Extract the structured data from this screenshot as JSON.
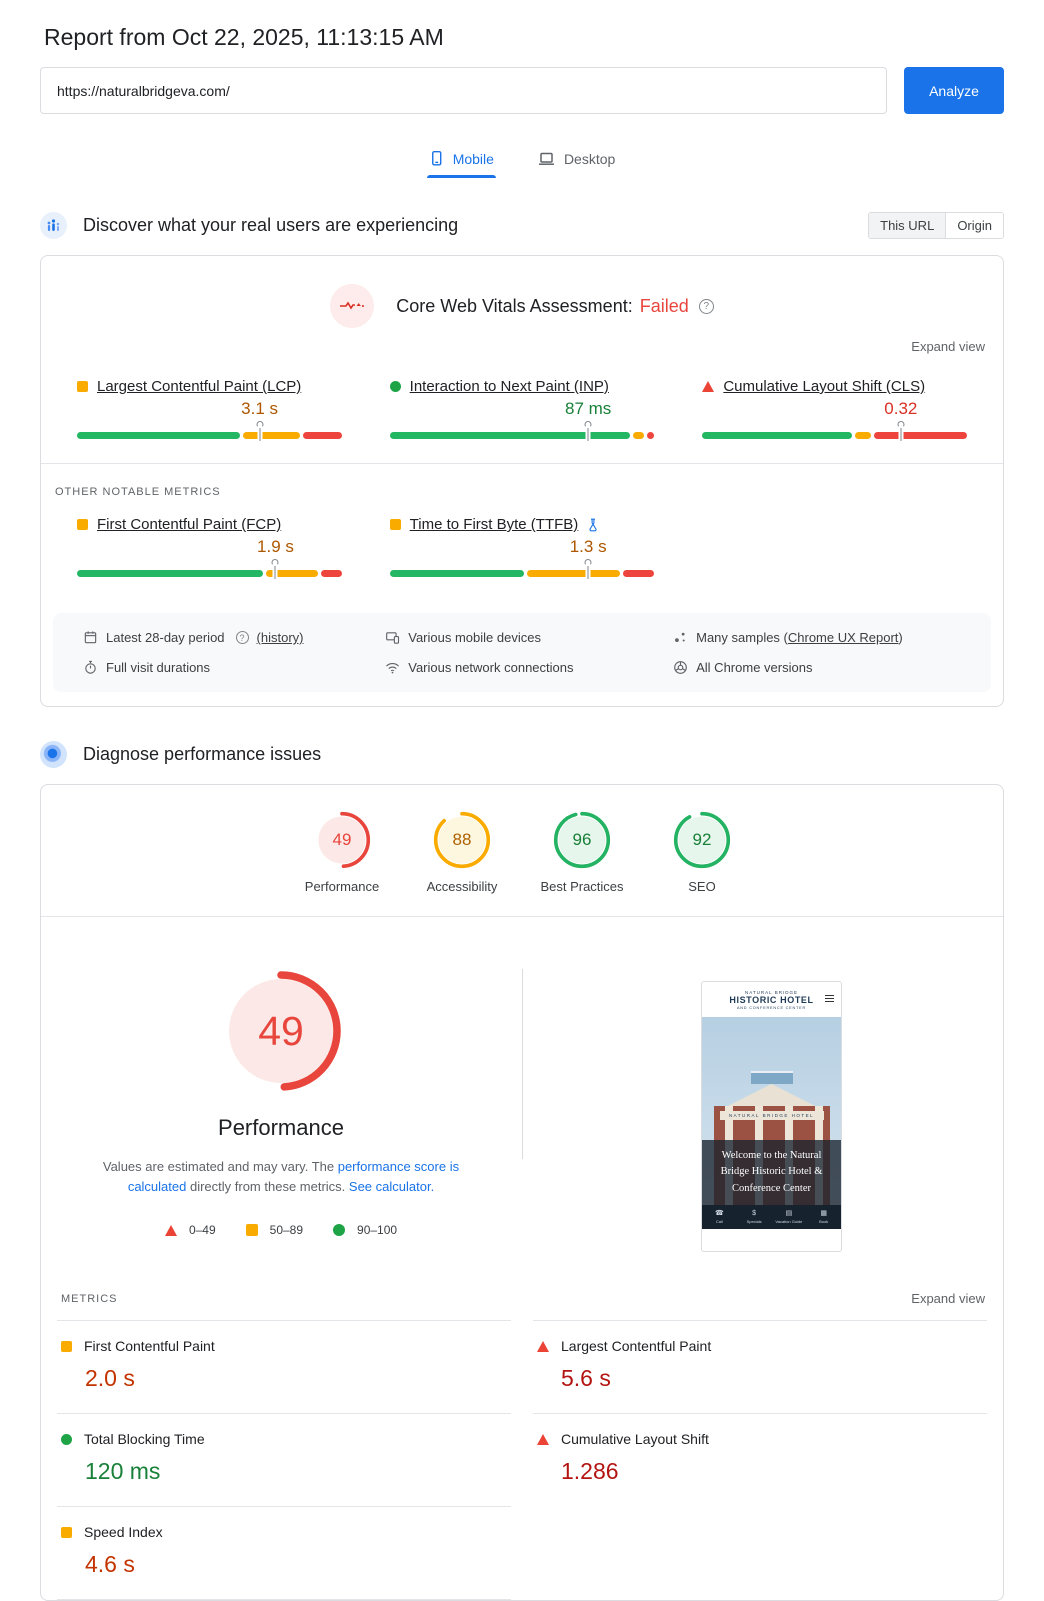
{
  "header": {
    "title": "Report from Oct 22, 2025, 11:13:15 AM",
    "url_value": "https://naturalbridgeva.com/",
    "analyze_label": "Analyze"
  },
  "tabs": [
    {
      "label": "Mobile",
      "active": true
    },
    {
      "label": "Desktop",
      "active": false
    }
  ],
  "colors": {
    "accent_blue": "#1a73e8",
    "failed": "#e8453c",
    "bar": {
      "good": "#23b663",
      "average": "#f9ab00",
      "poor": "#ee443e"
    },
    "shape": {
      "good": "#1ea446",
      "average": "#f9ab00",
      "poor": "#eb4437"
    },
    "field_value": {
      "good": "#188038",
      "average": "#ad5700",
      "poor": "#d93025"
    },
    "lab_value": {
      "good": "#188038",
      "average": "#c33300",
      "poor": "#b31412"
    },
    "gauge_arc": {
      "good": "#24b263",
      "average": "#f9ab00",
      "poor": "#e8453c"
    },
    "gauge_bg": {
      "good": "#e7f6ec",
      "average": "#fef7e0",
      "poor": "#fce8e6"
    },
    "gauge_text": {
      "good": "#188038",
      "average": "#b06000",
      "poor": "#e8453c"
    }
  },
  "field_section": {
    "heading": "Discover what your real users are experiencing",
    "toggle": {
      "this_url": "This URL",
      "origin": "Origin"
    },
    "assessment_prefix": "Core Web Vitals Assessment:",
    "assessment_status": "Failed",
    "expand_label": "Expand view",
    "core_metrics": [
      {
        "name": "Largest Contentful Paint (LCP)",
        "value": "3.1 s",
        "rating": "average",
        "segments": [
          63,
          22,
          15
        ],
        "marker": 69
      },
      {
        "name": "Interaction to Next Paint (INP)",
        "value": "87 ms",
        "rating": "good",
        "segments": [
          93,
          4,
          3
        ],
        "marker": 75
      },
      {
        "name": "Cumulative Layout Shift (CLS)",
        "value": "0.32",
        "rating": "poor",
        "segments": [
          58,
          6,
          36
        ],
        "marker": 75
      }
    ],
    "other_label": "OTHER NOTABLE METRICS",
    "other_metrics": [
      {
        "name": "First Contentful Paint (FCP)",
        "value": "1.9 s",
        "rating": "average",
        "segments": [
          72,
          20,
          8
        ],
        "marker": 75
      },
      {
        "name": "Time to First Byte (TTFB)",
        "value": "1.3 s",
        "rating": "average",
        "segments": [
          52,
          36,
          12
        ],
        "marker": 75
      }
    ],
    "footnotes": {
      "period": {
        "text": "Latest 28-day period",
        "link": "(history)"
      },
      "devices": {
        "text": "Various mobile devices"
      },
      "samples": {
        "prefix": "Many samples (",
        "link": "Chrome UX Report",
        "suffix": ")"
      },
      "durations": {
        "text": "Full visit durations"
      },
      "network": {
        "text": "Various network connections"
      },
      "chrome": {
        "text": "All Chrome versions"
      }
    }
  },
  "lab_section": {
    "heading": "Diagnose performance issues",
    "categories": [
      {
        "label": "Performance",
        "score": 49,
        "rating": "poor"
      },
      {
        "label": "Accessibility",
        "score": 88,
        "rating": "average"
      },
      {
        "label": "Best Practices",
        "score": 96,
        "rating": "good"
      },
      {
        "label": "SEO",
        "score": 92,
        "rating": "good"
      }
    ],
    "gauge": {
      "score": 49,
      "rating": "poor",
      "label": "Performance"
    },
    "disclaimer": {
      "t1": "Values are estimated and may vary. The ",
      "link1": "performance score is calculated",
      "t2": " directly from these metrics. ",
      "link2": "See calculator."
    },
    "legend": [
      {
        "rating": "poor",
        "range": "0–49"
      },
      {
        "rating": "average",
        "range": "50–89"
      },
      {
        "rating": "good",
        "range": "90–100"
      }
    ],
    "metrics_label": "METRICS",
    "expand_label": "Expand view",
    "metrics": [
      {
        "name": "First Contentful Paint",
        "value": "2.0 s",
        "rating": "average"
      },
      {
        "name": "Largest Contentful Paint",
        "value": "5.6 s",
        "rating": "poor"
      },
      {
        "name": "Total Blocking Time",
        "value": "120 ms",
        "rating": "good"
      },
      {
        "name": "Cumulative Layout Shift",
        "value": "1.286",
        "rating": "poor"
      },
      {
        "name": "Speed Index",
        "value": "4.6 s",
        "rating": "average"
      }
    ],
    "screenshot": {
      "brand_top": "NATURAL BRIDGE",
      "brand_main": "HISTORIC HOTEL",
      "brand_sub": "AND CONFERENCE CENTER",
      "facade_sign": "NATURAL BRIDGE HOTEL",
      "headline": "Welcome to the Natural Bridge Historic Hotel & Conference Center",
      "nav": [
        "Call",
        "Specials",
        "Vacation Guide",
        "Book"
      ]
    }
  }
}
